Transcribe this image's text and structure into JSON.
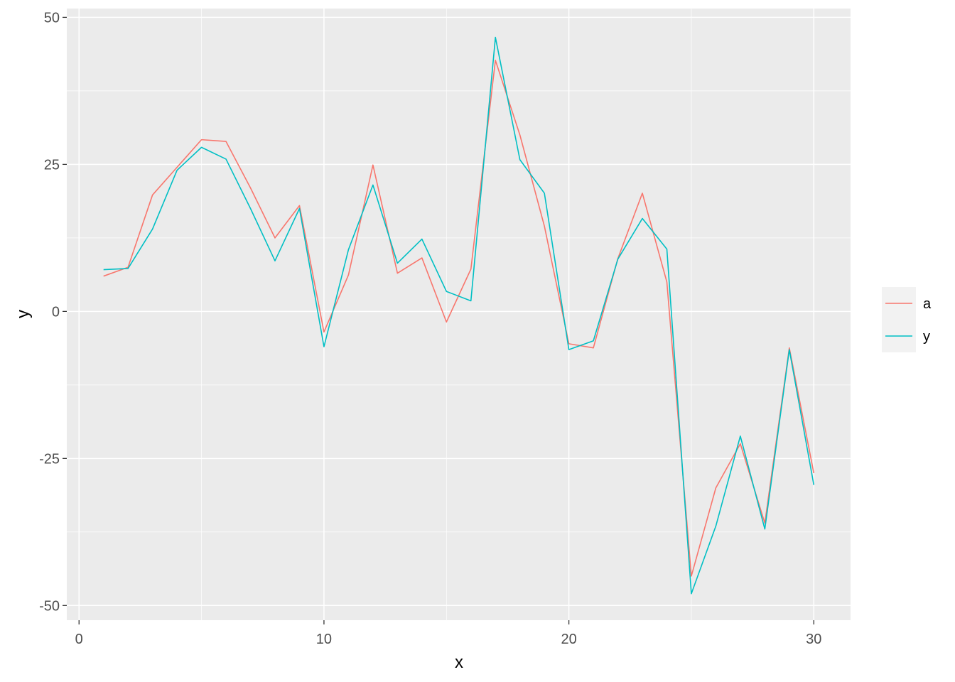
{
  "chart_data": {
    "type": "line",
    "title": "",
    "xlabel": "x",
    "ylabel": "y",
    "xlim": [
      -0.5,
      31.5
    ],
    "ylim": [
      -52.5,
      51.5
    ],
    "x_ticks": [
      0,
      10,
      20,
      30
    ],
    "y_ticks": [
      -50,
      -25,
      0,
      25,
      50
    ],
    "x_tick_labels": [
      "0",
      "10",
      "20",
      "30"
    ],
    "y_tick_labels": [
      "-50",
      "-25",
      "0",
      "25",
      "50"
    ],
    "grid": true,
    "panel_background": "#EBEBEB",
    "legend": {
      "position": "right",
      "entries": [
        "a",
        "y"
      ]
    },
    "x": [
      1,
      2,
      3,
      4,
      5,
      6,
      7,
      8,
      9,
      10,
      11,
      12,
      13,
      14,
      15,
      16,
      17,
      18,
      19,
      20,
      21,
      22,
      23,
      24,
      25,
      26,
      27,
      28,
      29,
      30
    ],
    "series": [
      {
        "name": "a",
        "color": "#F8766D",
        "values": [
          6,
          7.5,
          19.8,
          24.5,
          29.2,
          28.9,
          21,
          12.5,
          18,
          -3.5,
          6.2,
          24.9,
          6.5,
          9.1,
          -1.8,
          7.2,
          42.7,
          30,
          14.5,
          -5.5,
          -6.2,
          9,
          20.1,
          5,
          -45,
          -30,
          -22.5,
          -36,
          -6.2,
          -27.5
        ]
      },
      {
        "name": "y",
        "color": "#00BFC4",
        "values": [
          7.1,
          7.3,
          14,
          24,
          27.9,
          25.9,
          17.5,
          8.6,
          17.5,
          -6,
          10.5,
          21.5,
          8.2,
          12.3,
          3.4,
          1.8,
          46.6,
          25.8,
          20.1,
          -6.5,
          -5,
          8.9,
          15.8,
          10.6,
          -48,
          -36.5,
          -21.2,
          -37,
          -6.5,
          -29.5
        ]
      }
    ]
  }
}
